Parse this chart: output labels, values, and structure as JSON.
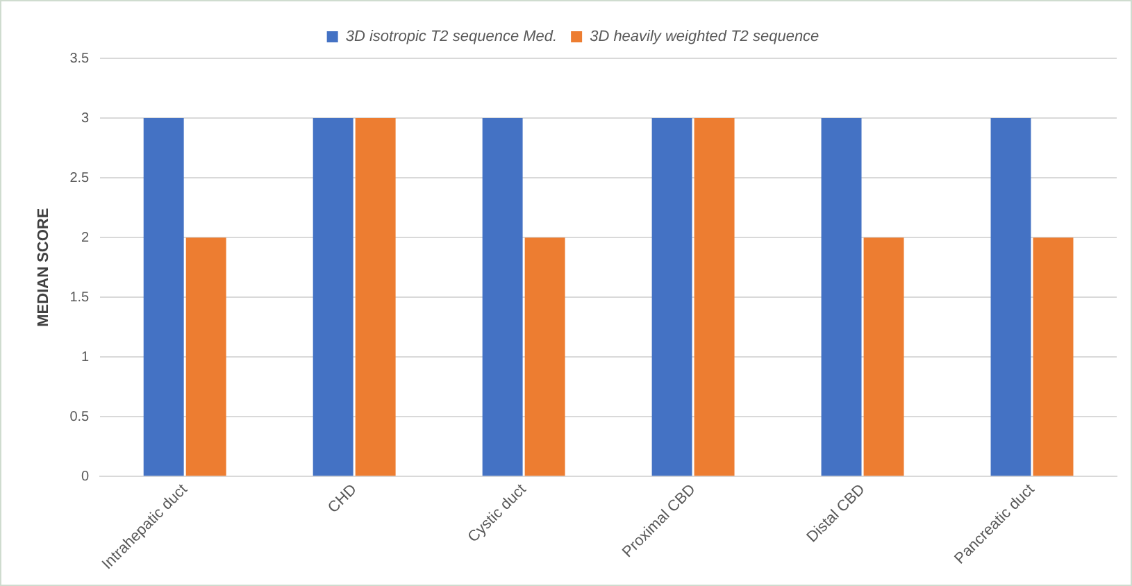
{
  "chart_data": {
    "type": "bar",
    "ylabel": "MEDIAN SCORE",
    "categories": [
      "Intrahepatic duct",
      "CHD",
      "Cystic duct",
      "Proximal CBD",
      "Distal CBD",
      "Pancreatic duct"
    ],
    "series": [
      {
        "name": "3D isotropic T2 sequence Med.",
        "color": "#4472c4",
        "values": [
          3,
          3,
          3,
          3,
          3,
          3
        ]
      },
      {
        "name": "3D heavily weighted T2 sequence",
        "color": "#ed7d31",
        "values": [
          2,
          3,
          2,
          3,
          2,
          2
        ]
      }
    ],
    "ylim": [
      0,
      3.5
    ],
    "yticks": [
      0,
      0.5,
      1,
      1.5,
      2,
      2.5,
      3,
      3.5
    ],
    "grid": "y",
    "legend": "top"
  }
}
